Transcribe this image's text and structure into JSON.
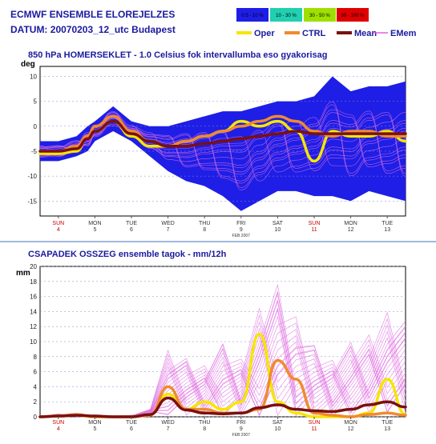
{
  "header": {
    "line1": "ECMWF ENSEMBLE ELOREJELZES",
    "line2": "DATUM: 20070203_12_utc  Budapest"
  },
  "legend": {
    "prob": [
      {
        "label": "0.5 - 10 %",
        "color": "#1e1ee6"
      },
      {
        "label": "10 - 30 %",
        "color": "#20d0b0"
      },
      {
        "label": "30 - 50 %",
        "color": "#9ee000"
      },
      {
        "label": "50 - 100 %",
        "color": "#e00000"
      }
    ],
    "lines": [
      {
        "label": "Oper",
        "color": "#f5e600"
      },
      {
        "label": "CTRL",
        "color": "#f08a30"
      },
      {
        "label": "Mean",
        "color": "#7a1010"
      },
      {
        "label": "EMem",
        "color": "#e060e0"
      }
    ]
  },
  "chart_data": [
    {
      "type": "area",
      "title": "850 hPa HOMERSEKLET - 1.0 Celsius fok intervallumba eso gyakorisag",
      "ylabel": "deg",
      "ylim": [
        -18,
        12
      ],
      "yticks": [
        10,
        5,
        0,
        -5,
        -10,
        -15
      ],
      "categories": [
        {
          "day": "SUN",
          "date": "4",
          "weekend": true
        },
        {
          "day": "MON",
          "date": "5",
          "weekend": false
        },
        {
          "day": "TUE",
          "date": "6",
          "weekend": false
        },
        {
          "day": "WED",
          "date": "7",
          "weekend": false
        },
        {
          "day": "THU",
          "date": "8",
          "weekend": false
        },
        {
          "day": "FRI",
          "date": "9",
          "weekend": false
        },
        {
          "day": "SAT",
          "date": "10",
          "weekend": false
        },
        {
          "day": "SUN",
          "date": "11",
          "weekend": true
        },
        {
          "day": "MON",
          "date": "12",
          "weekend": false
        },
        {
          "day": "TUE",
          "date": "13",
          "weekend": false
        }
      ],
      "month_label": "FEB 2007",
      "x": [
        3.5,
        4,
        4.5,
        4.8,
        5,
        5.5,
        6,
        6.5,
        7,
        7.5,
        8,
        8.5,
        9,
        9.5,
        10,
        10.5,
        11,
        11.5,
        12,
        12.5,
        13,
        13.5
      ],
      "envelope_upper": [
        -3,
        -3,
        -2,
        0,
        1,
        4,
        1,
        0,
        0,
        1,
        2,
        3,
        3,
        4,
        5,
        5,
        6,
        10,
        7,
        8,
        8,
        9
      ],
      "envelope_lower": [
        -7,
        -7,
        -6,
        -5,
        -3,
        -1,
        -3,
        -6,
        -9,
        -11,
        -12,
        -14,
        -17,
        -15,
        -13,
        -13,
        -14,
        -14,
        -15,
        -13,
        -14,
        -15
      ],
      "series": [
        {
          "name": "Oper",
          "values": [
            -5.5,
            -5.5,
            -5,
            -2,
            -1,
            1,
            -2,
            -4,
            -4,
            -3,
            -2,
            -1,
            1,
            0,
            1,
            -1,
            -7,
            -1,
            -2,
            -2,
            -1,
            -3
          ]
        },
        {
          "name": "CTRL",
          "values": [
            -5,
            -5,
            -4,
            -2,
            0,
            2,
            -1,
            -3,
            -4,
            -3,
            -2,
            -1,
            0,
            1,
            2,
            1,
            -1,
            -2,
            -1,
            -1,
            -2,
            -2
          ]
        },
        {
          "name": "Mean",
          "values": [
            -5,
            -5,
            -4.5,
            -2.5,
            -1,
            1,
            -1.5,
            -3,
            -4,
            -4,
            -3.5,
            -3,
            -2.5,
            -2,
            -1.5,
            -1,
            -1.5,
            -1.5,
            -1.5,
            -1.5,
            -1.5,
            -1.5
          ]
        }
      ]
    },
    {
      "type": "line",
      "title": "CSAPADEK OSSZEG ensemble tagok - mm/12h",
      "ylabel": "mm",
      "ylim": [
        0,
        20
      ],
      "yticks": [
        20,
        18,
        16,
        14,
        12,
        10,
        8,
        6,
        4,
        2,
        0
      ],
      "month_label": "FEB 2007",
      "x": [
        3.5,
        4,
        4.5,
        5,
        5.5,
        6,
        6.5,
        7,
        7.5,
        8,
        8.5,
        9,
        9.5,
        10,
        10.5,
        11,
        11.5,
        12,
        12.5,
        13,
        13.5
      ],
      "series": [
        {
          "name": "Oper",
          "values": [
            0,
            0.1,
            0.2,
            0,
            0,
            0,
            0.3,
            3,
            1,
            2,
            1,
            2,
            11,
            2,
            0.5,
            0,
            0,
            0,
            0.5,
            5,
            0.3
          ]
        },
        {
          "name": "CTRL",
          "values": [
            0,
            0.1,
            0.3,
            0,
            0,
            0,
            0.2,
            4,
            1,
            1,
            0.5,
            0.5,
            1,
            7.5,
            5,
            0.5,
            0.2,
            0,
            0.3,
            0.5,
            0.2
          ]
        },
        {
          "name": "Mean",
          "values": [
            0,
            0.1,
            0.2,
            0.1,
            0,
            0,
            0.3,
            2.5,
            0.9,
            0.5,
            0.4,
            0.5,
            1.2,
            1.6,
            1,
            0.8,
            0.7,
            1,
            1.6,
            2,
            1.3
          ]
        },
        {
          "name": "EMem max",
          "values": [
            0,
            0.4,
            0.5,
            0.2,
            0.1,
            0.2,
            1,
            9,
            8,
            7,
            10,
            8,
            15,
            18.5,
            14,
            10,
            8,
            10,
            11,
            14,
            13
          ]
        }
      ]
    }
  ]
}
